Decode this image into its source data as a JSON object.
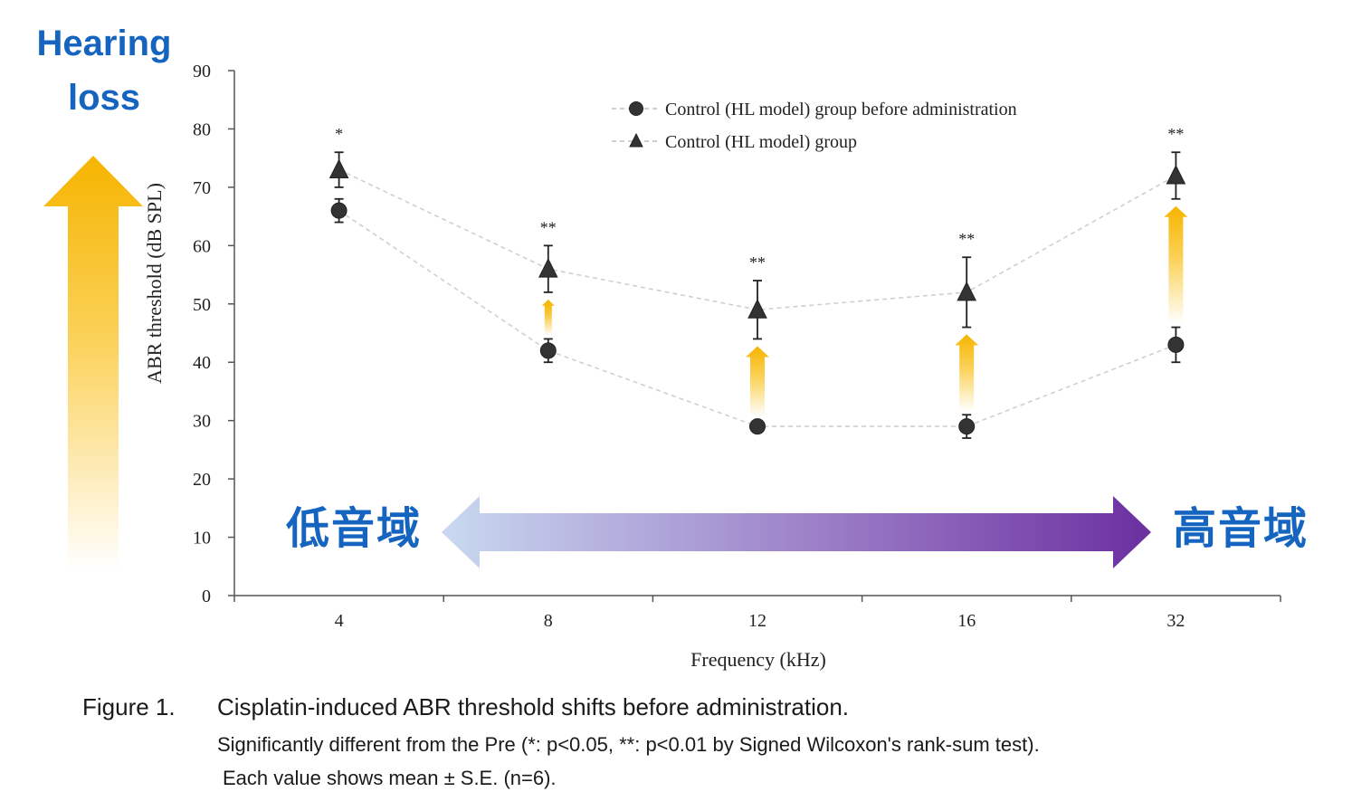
{
  "hearing_loss": {
    "line1": "Hearing",
    "line2": "loss"
  },
  "regions": {
    "low": "低音域",
    "high": "高音域"
  },
  "chart_data": {
    "type": "line",
    "title": "",
    "xlabel": "Frequency (kHz)",
    "ylabel": "ABR threshold (dB SPL)",
    "ylim": [
      0,
      90
    ],
    "yticks": [
      0,
      10,
      20,
      30,
      40,
      50,
      60,
      70,
      80,
      90
    ],
    "categories": [
      "4",
      "8",
      "12",
      "16",
      "32"
    ],
    "grid": false,
    "legend": "top-center",
    "series": [
      {
        "name": "Control (HL model) group before administration",
        "marker": "circle",
        "values": [
          66,
          42,
          29,
          29,
          43
        ],
        "se": [
          2,
          2,
          1,
          2,
          3
        ],
        "color": "#333333"
      },
      {
        "name": "Control (HL model) group",
        "marker": "triangle",
        "values": [
          73,
          56,
          49,
          52,
          72
        ],
        "se": [
          3,
          4,
          5,
          6,
          4
        ],
        "color": "#333333"
      }
    ],
    "significance": [
      "*",
      "**",
      "**",
      "**",
      "**"
    ]
  },
  "colors": {
    "accent_blue": "#1565c0",
    "arrow_gold": "#f5b400",
    "purple": "#6b2fa0",
    "light_blue": "#c9d9f0"
  },
  "caption": {
    "number": "Figure 1.",
    "title": "Cisplatin-induced ABR threshold shifts before administration.",
    "line2": "Significantly different from the Pre (*: p<0.05, **: p<0.01 by  Signed Wilcoxon's rank-sum test).",
    "line3": "Each value shows mean ± S.E. (n=6)."
  }
}
